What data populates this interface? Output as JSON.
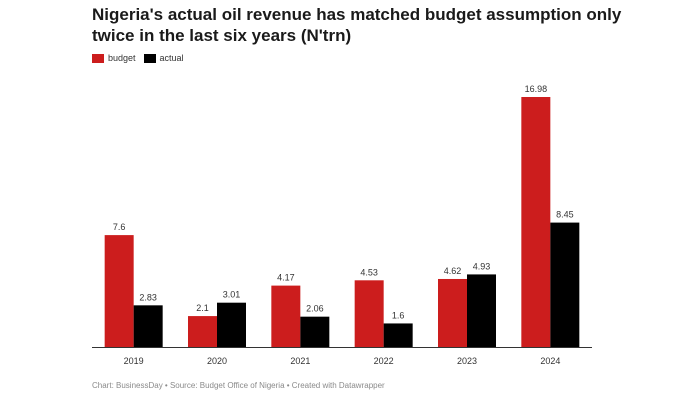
{
  "title": "Nigeria's actual oil revenue has matched budget assumption only twice in the last six years (N'trn)",
  "footer": "Chart: BusinessDay • Source: Budget Office of Nigeria • Created with Datawrapper",
  "chart_data": {
    "type": "bar",
    "title": "Nigeria's actual oil revenue has matched budget assumption only twice in the last six years (N'trn)",
    "xlabel": "",
    "ylabel": "",
    "categories": [
      "2019",
      "2020",
      "2021",
      "2022",
      "2023",
      "2024"
    ],
    "series": [
      {
        "name": "budget",
        "color": "#cc1d1d",
        "values": [
          7.6,
          2.1,
          4.17,
          4.53,
          4.62,
          16.98
        ],
        "labels": [
          "7.6",
          "2.1",
          "4.17",
          "4.53",
          "4.62",
          "16.98"
        ]
      },
      {
        "name": "actual",
        "color": "#000000",
        "values": [
          2.83,
          3.01,
          2.06,
          1.6,
          4.93,
          8.45
        ],
        "labels": [
          "2.83",
          "3.01",
          "2.06",
          "1.6",
          "4.93",
          "8.45"
        ]
      }
    ],
    "ylim": [
      0,
      16.98
    ],
    "grid": false,
    "legend_position": "top-left"
  }
}
